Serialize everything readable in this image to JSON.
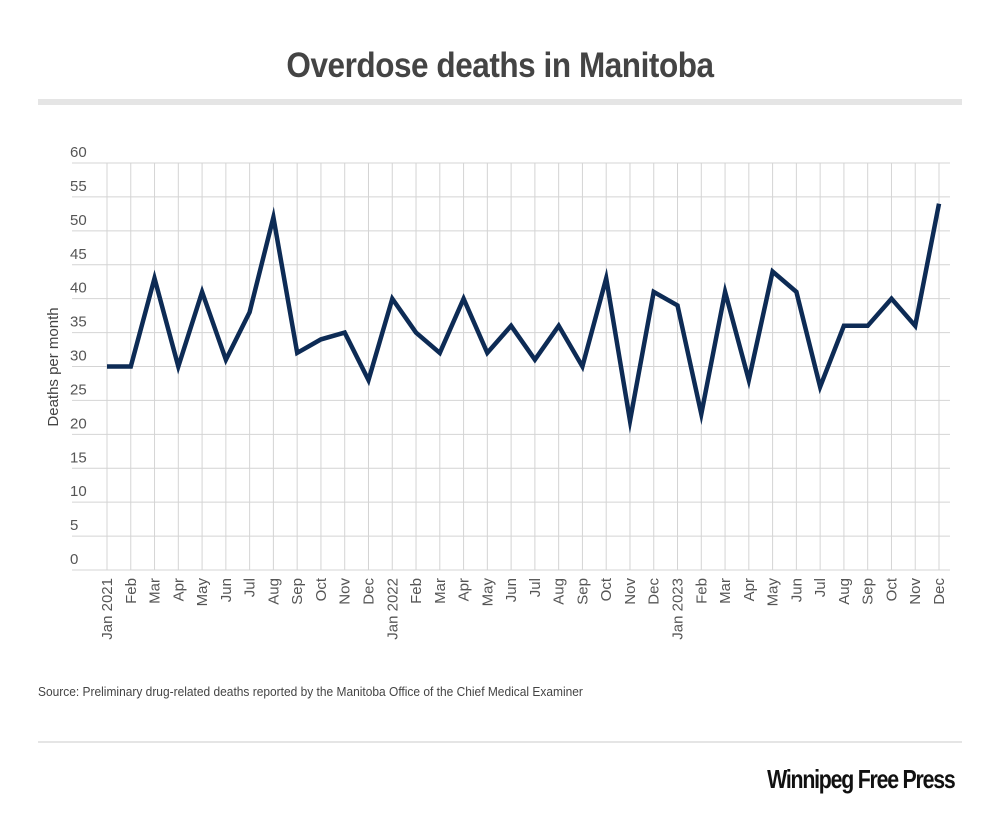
{
  "header": {
    "title": "Overdose deaths in Manitoba"
  },
  "footer": {
    "source": "Source: Preliminary drug-related deaths reported by the Manitoba Office of the Chief Medical Examiner",
    "brand": "Winnipeg Free Press"
  },
  "colors": {
    "line": "#0d2b55",
    "grid": "#d4d4d4",
    "rule": "#e5e5e5"
  },
  "chart_data": {
    "type": "line",
    "title": "Overdose deaths in Manitoba",
    "xlabel": "",
    "ylabel": "Deaths per month",
    "ylim": [
      0,
      60
    ],
    "yticks": [
      0,
      5,
      10,
      15,
      20,
      25,
      30,
      35,
      40,
      45,
      50,
      55,
      60
    ],
    "grid": true,
    "legend": "none",
    "categories": [
      "Jan 2021",
      "Feb",
      "Mar",
      "Apr",
      "May",
      "Jun",
      "Jul",
      "Aug",
      "Sep",
      "Oct",
      "Nov",
      "Dec",
      "Jan 2022",
      "Feb",
      "Mar",
      "Apr",
      "May",
      "Jun",
      "Jul",
      "Aug",
      "Sep",
      "Oct",
      "Nov",
      "Dec",
      "Jan 2023",
      "Feb",
      "Mar",
      "Apr",
      "May",
      "Jun",
      "Jul",
      "Aug",
      "Sep",
      "Oct",
      "Nov",
      "Dec"
    ],
    "series": [
      {
        "name": "Deaths per month",
        "values": [
          30,
          30,
          43,
          30,
          41,
          31,
          38,
          52,
          32,
          34,
          35,
          28,
          40,
          35,
          32,
          40,
          32,
          36,
          31,
          36,
          30,
          43,
          22,
          41,
          39,
          23,
          41,
          28,
          44,
          41,
          27,
          36,
          36,
          40,
          36,
          54
        ]
      }
    ],
    "source": "Source: Preliminary drug-related deaths reported by the Manitoba Office of the Chief Medical Examiner"
  }
}
